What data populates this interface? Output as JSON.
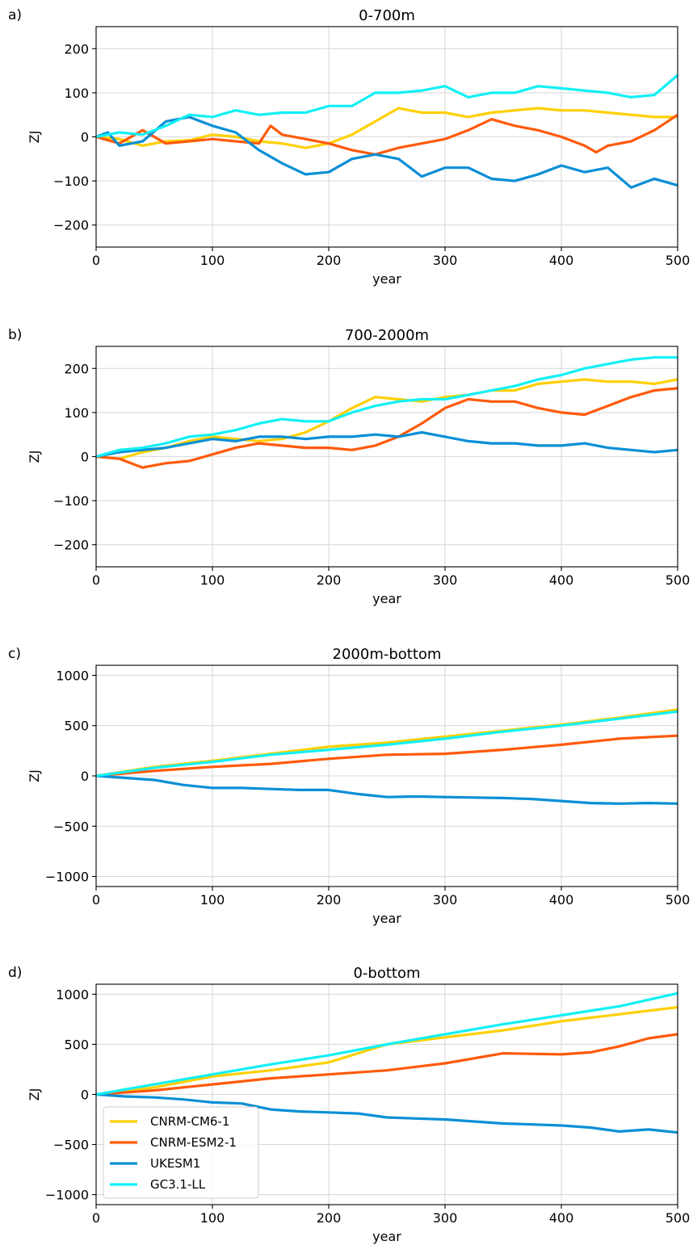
{
  "colors": {
    "CNRM-CM6-1": "#ffd000",
    "CNRM-ESM2-1": "#ff5a0a",
    "UKESM1": "#0a8fd6",
    "GC3.1-LL": "#12f0f6",
    "grid": "#d9d9d9"
  },
  "legend_position": "lower-left of panel d",
  "chart_data": [
    {
      "type": "line",
      "panel": "a)",
      "title": "0-700m",
      "xlabel": "year",
      "ylabel": "ZJ",
      "xlim": [
        0,
        500
      ],
      "ylim": [
        -250,
        250
      ],
      "xticks": [
        0,
        100,
        200,
        300,
        400,
        500
      ],
      "yticks": [
        -200,
        -100,
        0,
        100,
        200
      ],
      "grid": true,
      "series": [
        {
          "name": "CNRM-CM6-1",
          "x": [
            0,
            20,
            40,
            60,
            80,
            100,
            120,
            140,
            160,
            180,
            200,
            220,
            240,
            260,
            280,
            300,
            320,
            340,
            360,
            380,
            400,
            420,
            440,
            460,
            480,
            500
          ],
          "values": [
            0,
            -5,
            -20,
            -10,
            -8,
            5,
            0,
            -10,
            -15,
            -25,
            -15,
            5,
            35,
            65,
            55,
            55,
            45,
            55,
            60,
            65,
            60,
            60,
            55,
            50,
            45,
            45
          ]
        },
        {
          "name": "CNRM-ESM2-1",
          "x": [
            0,
            20,
            40,
            60,
            80,
            100,
            120,
            140,
            150,
            160,
            180,
            200,
            220,
            240,
            260,
            280,
            300,
            320,
            340,
            360,
            380,
            400,
            420,
            430,
            440,
            460,
            480,
            500
          ],
          "values": [
            0,
            -15,
            15,
            -15,
            -10,
            -5,
            -10,
            -15,
            25,
            5,
            -5,
            -15,
            -30,
            -40,
            -25,
            -15,
            -5,
            15,
            40,
            25,
            15,
            0,
            -20,
            -35,
            -20,
            -10,
            15,
            50
          ]
        },
        {
          "name": "UKESM1",
          "x": [
            0,
            10,
            20,
            40,
            60,
            80,
            100,
            120,
            140,
            160,
            180,
            200,
            220,
            240,
            260,
            280,
            300,
            320,
            340,
            360,
            380,
            400,
            420,
            440,
            460,
            480,
            500
          ],
          "values": [
            0,
            10,
            -20,
            -10,
            35,
            45,
            25,
            10,
            -30,
            -60,
            -85,
            -80,
            -50,
            -40,
            -50,
            -90,
            -70,
            -70,
            -95,
            -100,
            -85,
            -65,
            -80,
            -70,
            -115,
            -95,
            -110
          ]
        },
        {
          "name": "GC3.1-LL",
          "x": [
            0,
            20,
            40,
            60,
            80,
            100,
            120,
            140,
            160,
            180,
            200,
            220,
            240,
            260,
            280,
            300,
            320,
            340,
            360,
            380,
            400,
            420,
            440,
            460,
            480,
            500
          ],
          "values": [
            0,
            10,
            5,
            25,
            50,
            45,
            60,
            50,
            55,
            55,
            70,
            70,
            100,
            100,
            105,
            115,
            90,
            100,
            100,
            115,
            110,
            105,
            100,
            90,
            95,
            140
          ]
        }
      ]
    },
    {
      "type": "line",
      "panel": "b)",
      "title": "700-2000m",
      "xlabel": "year",
      "ylabel": "ZJ",
      "xlim": [
        0,
        500
      ],
      "ylim": [
        -250,
        250
      ],
      "xticks": [
        0,
        100,
        200,
        300,
        400,
        500
      ],
      "yticks": [
        -200,
        -100,
        0,
        100,
        200
      ],
      "grid": true,
      "series": [
        {
          "name": "CNRM-CM6-1",
          "x": [
            0,
            20,
            40,
            60,
            80,
            100,
            120,
            140,
            160,
            180,
            200,
            220,
            240,
            260,
            280,
            300,
            320,
            340,
            360,
            380,
            400,
            420,
            440,
            460,
            480,
            500
          ],
          "values": [
            0,
            -5,
            10,
            20,
            35,
            45,
            40,
            35,
            40,
            55,
            80,
            110,
            135,
            130,
            125,
            135,
            140,
            150,
            150,
            165,
            170,
            175,
            170,
            170,
            165,
            175
          ]
        },
        {
          "name": "CNRM-ESM2-1",
          "x": [
            0,
            20,
            40,
            60,
            80,
            100,
            120,
            140,
            160,
            180,
            200,
            220,
            240,
            260,
            280,
            300,
            320,
            340,
            360,
            380,
            400,
            420,
            440,
            460,
            480,
            500
          ],
          "values": [
            0,
            -5,
            -25,
            -15,
            -10,
            5,
            20,
            30,
            25,
            20,
            20,
            15,
            25,
            45,
            75,
            110,
            130,
            125,
            125,
            110,
            100,
            95,
            115,
            135,
            150,
            155
          ]
        },
        {
          "name": "UKESM1",
          "x": [
            0,
            20,
            40,
            60,
            80,
            100,
            120,
            140,
            160,
            180,
            200,
            220,
            240,
            260,
            280,
            300,
            320,
            340,
            360,
            380,
            400,
            420,
            440,
            460,
            480,
            500
          ],
          "values": [
            0,
            10,
            15,
            20,
            30,
            40,
            35,
            45,
            45,
            40,
            45,
            45,
            50,
            45,
            55,
            45,
            35,
            30,
            30,
            25,
            25,
            30,
            20,
            15,
            10,
            15
          ]
        },
        {
          "name": "GC3.1-LL",
          "x": [
            0,
            20,
            40,
            60,
            80,
            100,
            120,
            140,
            160,
            180,
            200,
            220,
            240,
            260,
            280,
            300,
            320,
            340,
            360,
            380,
            400,
            420,
            440,
            460,
            480,
            500
          ],
          "values": [
            0,
            15,
            20,
            30,
            45,
            50,
            60,
            75,
            85,
            80,
            80,
            100,
            115,
            125,
            130,
            130,
            140,
            150,
            160,
            175,
            185,
            200,
            210,
            220,
            225,
            225
          ]
        }
      ]
    },
    {
      "type": "line",
      "panel": "c)",
      "title": "2000m-bottom",
      "xlabel": "year",
      "ylabel": "ZJ",
      "xlim": [
        0,
        500
      ],
      "ylim": [
        -1100,
        1100
      ],
      "xticks": [
        0,
        100,
        200,
        300,
        400,
        500
      ],
      "yticks": [
        -1000,
        -500,
        0,
        500,
        1000
      ],
      "grid": true,
      "series": [
        {
          "name": "CNRM-CM6-1",
          "x": [
            0,
            50,
            100,
            150,
            200,
            250,
            300,
            350,
            400,
            450,
            500
          ],
          "values": [
            0,
            90,
            150,
            220,
            290,
            330,
            390,
            450,
            510,
            580,
            660
          ]
        },
        {
          "name": "CNRM-ESM2-1",
          "x": [
            0,
            50,
            100,
            150,
            200,
            250,
            300,
            350,
            400,
            450,
            500
          ],
          "values": [
            0,
            50,
            90,
            120,
            170,
            210,
            220,
            260,
            310,
            370,
            400
          ]
        },
        {
          "name": "UKESM1",
          "x": [
            0,
            25,
            50,
            75,
            100,
            125,
            150,
            175,
            200,
            225,
            250,
            275,
            300,
            325,
            350,
            375,
            400,
            425,
            450,
            475,
            500
          ],
          "values": [
            0,
            -20,
            -40,
            -90,
            -120,
            -120,
            -130,
            -140,
            -140,
            -180,
            -210,
            -205,
            -210,
            -215,
            -220,
            -230,
            -250,
            -270,
            -275,
            -270,
            -275
          ]
        },
        {
          "name": "GC3.1-LL",
          "x": [
            0,
            50,
            100,
            150,
            200,
            250,
            300,
            350,
            400,
            450,
            500
          ],
          "values": [
            0,
            80,
            140,
            210,
            260,
            310,
            370,
            440,
            500,
            570,
            640
          ]
        }
      ]
    },
    {
      "type": "line",
      "panel": "d)",
      "title": "0-bottom",
      "xlabel": "year",
      "ylabel": "ZJ",
      "xlim": [
        0,
        500
      ],
      "ylim": [
        -1100,
        1100
      ],
      "xticks": [
        0,
        100,
        200,
        300,
        400,
        500
      ],
      "yticks": [
        -1000,
        -500,
        0,
        500,
        1000
      ],
      "grid": true,
      "series": [
        {
          "name": "CNRM-CM6-1",
          "x": [
            0,
            50,
            100,
            150,
            200,
            250,
            300,
            350,
            400,
            450,
            500
          ],
          "values": [
            0,
            70,
            180,
            240,
            320,
            500,
            570,
            640,
            730,
            800,
            870
          ]
        },
        {
          "name": "CNRM-ESM2-1",
          "x": [
            0,
            50,
            100,
            150,
            200,
            250,
            300,
            350,
            400,
            425,
            450,
            475,
            500
          ],
          "values": [
            0,
            40,
            100,
            160,
            200,
            240,
            310,
            410,
            400,
            420,
            480,
            560,
            600
          ]
        },
        {
          "name": "UKESM1",
          "x": [
            0,
            25,
            50,
            75,
            100,
            125,
            150,
            175,
            200,
            225,
            250,
            275,
            300,
            325,
            350,
            375,
            400,
            425,
            450,
            475,
            500
          ],
          "values": [
            0,
            -20,
            -30,
            -50,
            -80,
            -90,
            -150,
            -170,
            -180,
            -190,
            -230,
            -240,
            -250,
            -270,
            -290,
            -300,
            -310,
            -330,
            -370,
            -350,
            -380
          ]
        },
        {
          "name": "GC3.1-LL",
          "x": [
            0,
            50,
            100,
            150,
            200,
            250,
            300,
            350,
            400,
            450,
            500
          ],
          "values": [
            0,
            100,
            200,
            300,
            390,
            500,
            600,
            700,
            790,
            880,
            1010
          ]
        }
      ]
    }
  ]
}
